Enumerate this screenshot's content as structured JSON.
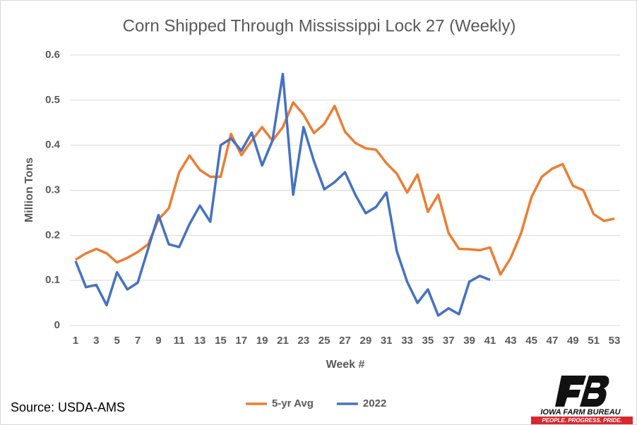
{
  "chart_data": {
    "type": "line",
    "title": "Corn Shipped Through Mississippi Lock 27 (Weekly)",
    "x_label": "Week #",
    "y_label": "Million Tons",
    "x": [
      1,
      2,
      3,
      4,
      5,
      6,
      7,
      8,
      9,
      10,
      11,
      12,
      13,
      14,
      15,
      16,
      17,
      18,
      19,
      20,
      21,
      22,
      23,
      24,
      25,
      26,
      27,
      28,
      29,
      30,
      31,
      32,
      33,
      34,
      35,
      36,
      37,
      38,
      39,
      40,
      41,
      42,
      43,
      44,
      45,
      46,
      47,
      48,
      49,
      50,
      51,
      52,
      53
    ],
    "xlim": [
      1,
      53
    ],
    "xticks": [
      1,
      3,
      5,
      7,
      9,
      11,
      13,
      15,
      17,
      19,
      21,
      23,
      25,
      27,
      29,
      31,
      33,
      35,
      37,
      39,
      41,
      43,
      45,
      47,
      49,
      51,
      53
    ],
    "ylim": [
      0,
      0.6
    ],
    "yticks": [
      0,
      0.1,
      0.2,
      0.3,
      0.4,
      0.5,
      0.6
    ],
    "grid": true,
    "legend": "bottom",
    "series": [
      {
        "name": "5-yr Avg",
        "color": "#ed7d31",
        "values": [
          0.146,
          0.16,
          0.17,
          0.16,
          0.14,
          0.15,
          0.163,
          0.18,
          0.235,
          0.26,
          0.34,
          0.377,
          0.345,
          0.33,
          0.33,
          0.425,
          0.378,
          0.41,
          0.44,
          0.41,
          0.44,
          0.495,
          0.468,
          0.427,
          0.447,
          0.487,
          0.43,
          0.405,
          0.393,
          0.39,
          0.36,
          0.337,
          0.295,
          0.335,
          0.252,
          0.29,
          0.205,
          0.17,
          0.169,
          0.167,
          0.173,
          0.113,
          0.15,
          0.205,
          0.285,
          0.33,
          0.348,
          0.358,
          0.31,
          0.3,
          0.247,
          0.232,
          0.237
        ]
      },
      {
        "name": "2022",
        "color": "#4472c4",
        "values": [
          0.143,
          0.085,
          0.09,
          0.045,
          0.118,
          0.08,
          0.095,
          0.17,
          0.245,
          0.18,
          0.174,
          0.225,
          0.266,
          0.23,
          0.4,
          0.415,
          0.388,
          0.428,
          0.355,
          0.41,
          0.558,
          0.29,
          0.44,
          0.365,
          0.302,
          0.318,
          0.34,
          0.29,
          0.249,
          0.263,
          0.295,
          0.165,
          0.097,
          0.05,
          0.08,
          0.022,
          0.038,
          0.025,
          0.097,
          0.11,
          0.101,
          null,
          null,
          null,
          null,
          null,
          null,
          null,
          null,
          null,
          null,
          null,
          null
        ]
      }
    ]
  },
  "footer": {
    "source": "Source: USDA-AMS",
    "logo_name": "IOWA FARM BUREAU",
    "logo_tagline": "PEOPLE. PROGRESS. PRIDE."
  }
}
